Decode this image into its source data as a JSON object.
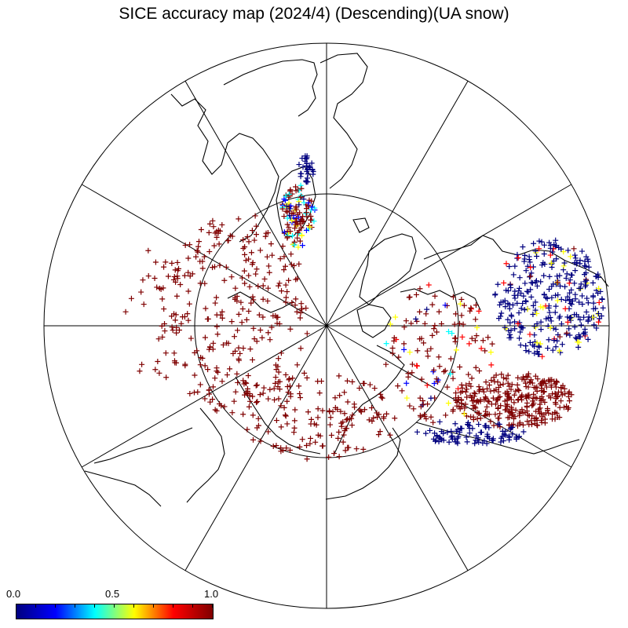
{
  "title": "SICE accuracy map (2024/4) (Descending)(UA snow)",
  "colorbar": {
    "labels": [
      "0.0",
      "0.5",
      "1.0"
    ],
    "min": 0.0,
    "max": 1.0,
    "ticks": 11
  },
  "colors": {
    "low": "#00007f",
    "blue": "#0000ff",
    "cyan": "#00ffff",
    "yellow": "#ffff00",
    "red": "#ff0000",
    "high": "#7f0000",
    "coastline": "#000000"
  }
}
